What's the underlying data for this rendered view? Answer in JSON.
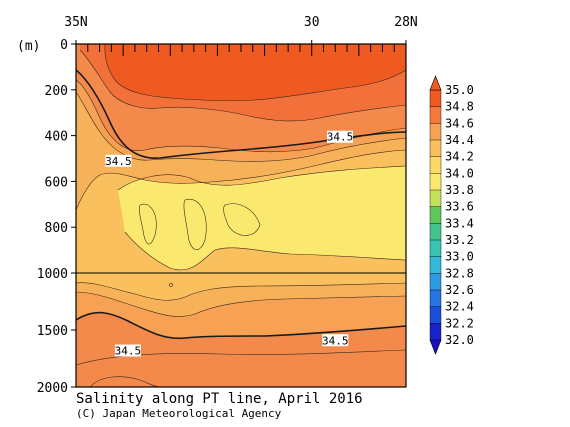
{
  "chart_data": {
    "type": "heatmap",
    "title": "Salinity along PT line, April 2016",
    "credit": "(C) Japan Meteorological Agency",
    "x_axis": {
      "direction": "south",
      "range_degN": [
        35,
        28
      ],
      "tick_labels": [
        {
          "lat": 35,
          "label": "35N"
        },
        {
          "lat": 30,
          "label": "30"
        },
        {
          "lat": 28,
          "label": "28N"
        }
      ]
    },
    "y_axis": {
      "unit": "(m)",
      "range_m": [
        0,
        2000
      ],
      "inverted": true,
      "scale_break_m": 1000,
      "tick_labels": [
        {
          "depth": 0,
          "label": "0"
        },
        {
          "depth": 200,
          "label": "200"
        },
        {
          "depth": 400,
          "label": "400"
        },
        {
          "depth": 600,
          "label": "600"
        },
        {
          "depth": 800,
          "label": "800"
        },
        {
          "depth": 1000,
          "label": "1000"
        },
        {
          "depth": 1500,
          "label": "1500"
        },
        {
          "depth": 2000,
          "label": "2000"
        }
      ]
    },
    "contour_interval": 0.1,
    "highlighted_contour": 34.5,
    "contour_labels": [
      {
        "text": "34.5",
        "lat": 29.4,
        "depth": 405
      },
      {
        "text": "34.5",
        "lat": 34.1,
        "depth": 510
      },
      {
        "text": "34.5",
        "lat": 29.5,
        "depth": 1590
      },
      {
        "text": "34.5",
        "lat": 33.9,
        "depth": 1680
      }
    ],
    "salinity_structure": {
      "surface_max_core": {
        "min": 34.8,
        "depth_range_m": [
          0,
          300
        ]
      },
      "intermediate_min_core": {
        "max": 34.0,
        "depth_range_m": [
          550,
          950
        ]
      },
      "deep": {
        "range": [
          34.4,
          34.6
        ],
        "depth_range_m": [
          1000,
          2000
        ]
      }
    },
    "colorbar": {
      "levels": [
        "35.0",
        "34.8",
        "34.6",
        "34.4",
        "34.2",
        "34.0",
        "33.8",
        "33.6",
        "33.4",
        "33.2",
        "33.0",
        "32.8",
        "32.6",
        "32.4",
        "32.2",
        "32.0"
      ],
      "colors": [
        "#ee5a20",
        "#f37a3a",
        "#f6a154",
        "#f9c05d",
        "#fbd964",
        "#fbe96f",
        "#c3e15b",
        "#5fc85a",
        "#41c38a",
        "#3ac3b4",
        "#35b8da",
        "#2d9be3",
        "#2574e0",
        "#1c4fd9",
        "#1a22c9"
      ]
    },
    "band_colors": {
      "gt_34.9": "#ee5a20",
      "34.8_34.9": "#f2703a",
      "34.7_34.8": "#f38a4c",
      "34.6_34.7": "#f6a154",
      "34.5_34.6": "#f7b159",
      "34.4_34.5": "#f9c05d",
      "34.3_34.4": "#fbd964",
      "34.0_34.3": "#fbe96f"
    }
  }
}
